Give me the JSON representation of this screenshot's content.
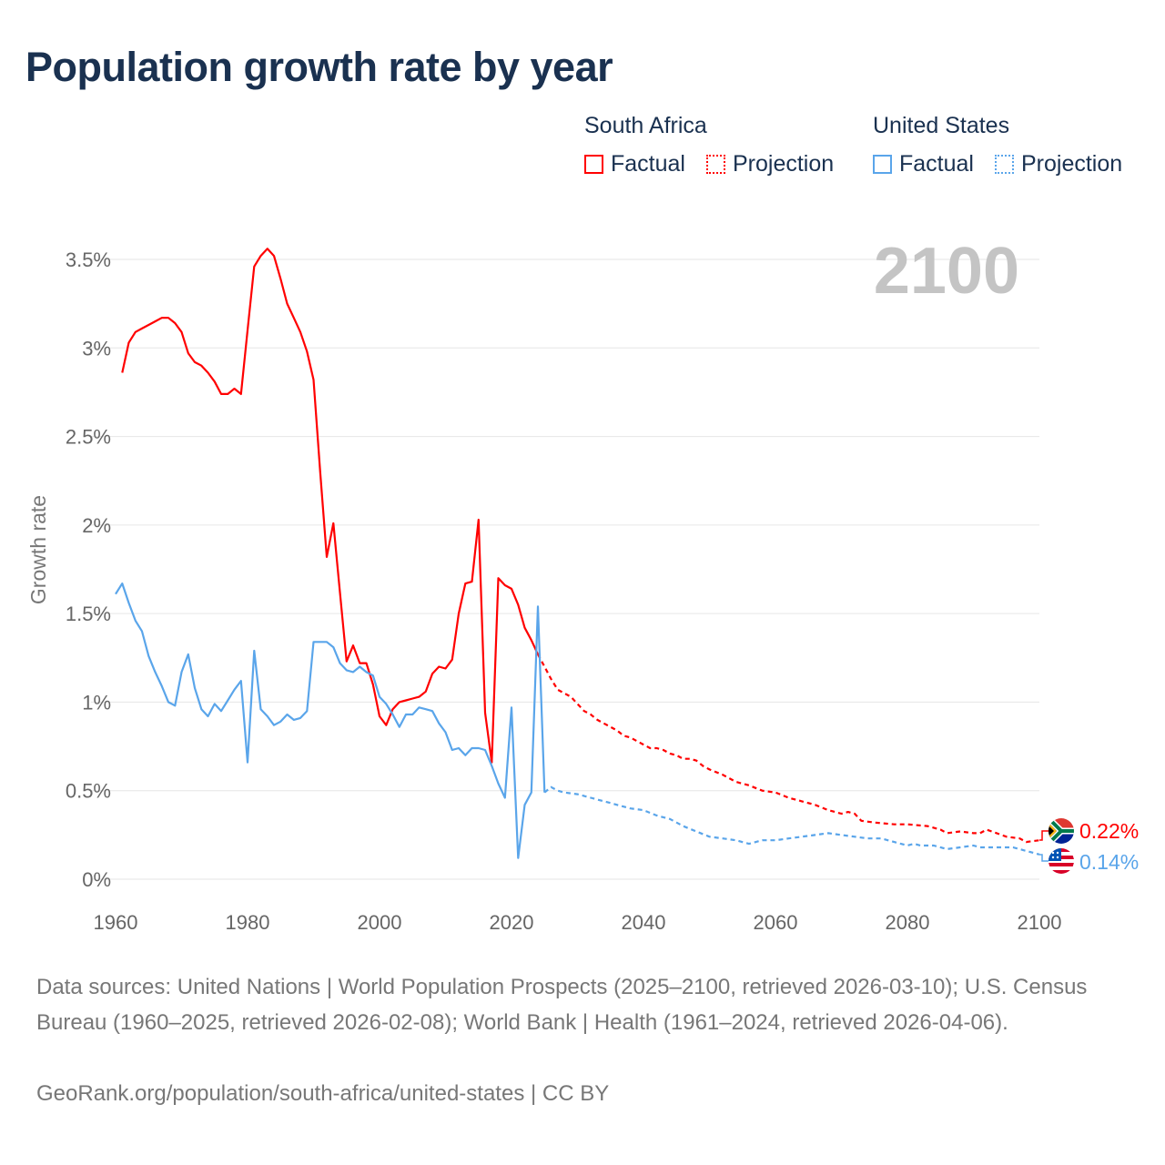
{
  "title": "Population growth rate by year",
  "legend": {
    "groups": [
      {
        "name": "South Africa",
        "color": "#ff0000",
        "factual": "Factual",
        "projection": "Projection"
      },
      {
        "name": "United States",
        "color": "#5aa5ea",
        "factual": "Factual",
        "projection": "Projection"
      }
    ]
  },
  "year_display": "2100",
  "end_labels": {
    "south_africa": "0.22%",
    "united_states": "0.14%"
  },
  "footer": {
    "sources": "Data sources: United Nations | World Population Prospects (2025–2100, retrieved 2026-03-10); U.S. Census Bureau (1960–2025, retrieved 2026-02-08); World Bank | Health (1961–2024, retrieved 2026-04-06).",
    "link": "GeoRank.org/population/south-africa/united-states | CC BY"
  },
  "chart_data": {
    "type": "line",
    "title": "Population growth rate by year",
    "xlabel": "",
    "ylabel": "Growth rate",
    "xlim": [
      1960,
      2100
    ],
    "ylim": [
      0,
      3.5
    ],
    "x_ticks": [
      1960,
      1980,
      2000,
      2020,
      2040,
      2060,
      2080,
      2100
    ],
    "y_ticks": [
      0,
      0.5,
      1,
      1.5,
      2,
      2.5,
      3,
      3.5
    ],
    "y_tick_labels": [
      "0%",
      "0.5%",
      "1%",
      "1.5%",
      "2%",
      "2.5%",
      "3%",
      "3.5%"
    ],
    "grid": true,
    "legend_position": "top-right",
    "series": [
      {
        "name": "South Africa – Factual",
        "color": "#ff0000",
        "dashed": false,
        "x": [
          1961,
          1962,
          1963,
          1964,
          1965,
          1966,
          1967,
          1968,
          1969,
          1970,
          1971,
          1972,
          1973,
          1974,
          1975,
          1976,
          1977,
          1978,
          1979,
          1980,
          1981,
          1982,
          1983,
          1984,
          1985,
          1986,
          1987,
          1988,
          1989,
          1990,
          1991,
          1992,
          1993,
          1994,
          1995,
          1996,
          1997,
          1998,
          1999,
          2000,
          2001,
          2002,
          2003,
          2004,
          2005,
          2006,
          2007,
          2008,
          2009,
          2010,
          2011,
          2012,
          2013,
          2014,
          2015,
          2016,
          2017,
          2018,
          2019,
          2020,
          2021,
          2022,
          2023,
          2024
        ],
        "y": [
          2.86,
          3.03,
          3.09,
          3.11,
          3.13,
          3.15,
          3.17,
          3.17,
          3.14,
          3.09,
          2.97,
          2.92,
          2.9,
          2.86,
          2.81,
          2.74,
          2.74,
          2.77,
          2.74,
          3.1,
          3.46,
          3.52,
          3.56,
          3.52,
          3.39,
          3.25,
          3.17,
          3.09,
          2.98,
          2.82,
          2.3,
          1.82,
          2.01,
          1.62,
          1.23,
          1.32,
          1.22,
          1.22,
          1.1,
          0.92,
          0.87,
          0.96,
          1.0,
          1.01,
          1.02,
          1.03,
          1.06,
          1.16,
          1.2,
          1.19,
          1.24,
          1.5,
          1.67,
          1.68,
          2.03,
          0.94,
          0.66,
          1.7,
          1.66,
          1.64,
          1.55,
          1.42,
          1.35,
          1.27
        ]
      },
      {
        "name": "South Africa – Projection",
        "color": "#ff0000",
        "dashed": true,
        "x": [
          2024,
          2025,
          2026,
          2027,
          2028,
          2029,
          2030,
          2031,
          2032,
          2033,
          2034,
          2035,
          2036,
          2037,
          2038,
          2039,
          2040,
          2041,
          2042,
          2043,
          2044,
          2045,
          2046,
          2047,
          2048,
          2049,
          2050,
          2052,
          2054,
          2056,
          2058,
          2060,
          2062,
          2064,
          2066,
          2068,
          2070,
          2071,
          2072,
          2073,
          2075,
          2078,
          2080,
          2083,
          2085,
          2086,
          2088,
          2090,
          2091,
          2092,
          2095,
          2097,
          2098,
          2100
        ],
        "y": [
          1.27,
          1.2,
          1.13,
          1.07,
          1.05,
          1.03,
          0.99,
          0.95,
          0.93,
          0.9,
          0.88,
          0.86,
          0.84,
          0.81,
          0.8,
          0.78,
          0.76,
          0.74,
          0.74,
          0.73,
          0.71,
          0.7,
          0.68,
          0.68,
          0.67,
          0.64,
          0.62,
          0.59,
          0.55,
          0.53,
          0.5,
          0.49,
          0.46,
          0.44,
          0.42,
          0.39,
          0.37,
          0.38,
          0.37,
          0.33,
          0.32,
          0.31,
          0.31,
          0.3,
          0.28,
          0.26,
          0.27,
          0.26,
          0.26,
          0.28,
          0.24,
          0.23,
          0.21,
          0.22
        ]
      },
      {
        "name": "United States – Factual",
        "color": "#5aa5ea",
        "dashed": false,
        "x": [
          1960,
          1961,
          1962,
          1963,
          1964,
          1965,
          1966,
          1967,
          1968,
          1969,
          1970,
          1971,
          1972,
          1973,
          1974,
          1975,
          1976,
          1977,
          1978,
          1979,
          1980,
          1981,
          1982,
          1983,
          1984,
          1985,
          1986,
          1987,
          1988,
          1989,
          1990,
          1991,
          1992,
          1993,
          1994,
          1995,
          1996,
          1997,
          1998,
          1999,
          2000,
          2001,
          2002,
          2003,
          2004,
          2005,
          2006,
          2007,
          2008,
          2009,
          2010,
          2011,
          2012,
          2013,
          2014,
          2015,
          2016,
          2017,
          2018,
          2019,
          2020,
          2021,
          2022,
          2023,
          2024,
          2025
        ],
        "y": [
          1.61,
          1.67,
          1.56,
          1.46,
          1.4,
          1.26,
          1.17,
          1.09,
          1.0,
          0.98,
          1.17,
          1.27,
          1.08,
          0.96,
          0.92,
          0.99,
          0.95,
          1.01,
          1.07,
          1.12,
          0.66,
          1.29,
          0.96,
          0.92,
          0.87,
          0.89,
          0.93,
          0.9,
          0.91,
          0.95,
          1.34,
          1.34,
          1.34,
          1.31,
          1.22,
          1.18,
          1.17,
          1.2,
          1.17,
          1.15,
          1.03,
          0.99,
          0.93,
          0.86,
          0.93,
          0.93,
          0.97,
          0.96,
          0.95,
          0.88,
          0.83,
          0.73,
          0.74,
          0.7,
          0.74,
          0.74,
          0.73,
          0.64,
          0.54,
          0.46,
          0.97,
          0.12,
          0.42,
          0.49,
          1.54,
          0.49
        ]
      },
      {
        "name": "United States – Projection",
        "color": "#5aa5ea",
        "dashed": true,
        "x": [
          2025,
          2026,
          2027,
          2028,
          2030,
          2032,
          2034,
          2035,
          2036,
          2038,
          2040,
          2042,
          2044,
          2045,
          2046,
          2048,
          2050,
          2052,
          2054,
          2056,
          2058,
          2060,
          2062,
          2064,
          2066,
          2068,
          2070,
          2072,
          2074,
          2076,
          2078,
          2080,
          2081,
          2082,
          2084,
          2086,
          2088,
          2090,
          2091,
          2092,
          2094,
          2096,
          2098,
          2100
        ],
        "y": [
          0.49,
          0.52,
          0.5,
          0.49,
          0.48,
          0.46,
          0.44,
          0.43,
          0.42,
          0.4,
          0.39,
          0.36,
          0.34,
          0.32,
          0.3,
          0.27,
          0.24,
          0.23,
          0.22,
          0.2,
          0.22,
          0.22,
          0.23,
          0.24,
          0.25,
          0.26,
          0.25,
          0.24,
          0.23,
          0.23,
          0.21,
          0.19,
          0.2,
          0.19,
          0.19,
          0.17,
          0.18,
          0.19,
          0.18,
          0.18,
          0.18,
          0.18,
          0.16,
          0.14
        ]
      }
    ]
  }
}
